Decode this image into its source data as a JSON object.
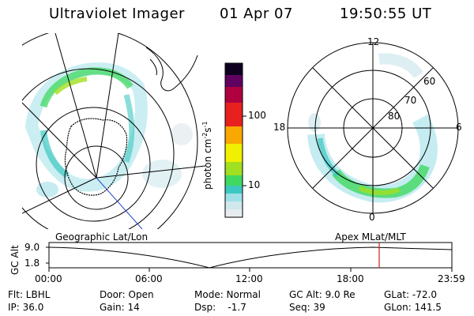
{
  "header": {
    "instrument": "Ultraviolet Imager",
    "date": "01 Apr 07",
    "time": "19:50:55 UT"
  },
  "colorbar": {
    "unit_label": "photon cm",
    "unit_exp1": "-2",
    "unit_mid": "s",
    "unit_exp2": "-1",
    "ticks": [
      "100",
      "10"
    ]
  },
  "polar_plot": {
    "mlt_labels": {
      "top": "12",
      "left": "18",
      "right": "6",
      "bottom": "0"
    },
    "lat_labels": [
      "60",
      "70",
      "80"
    ]
  },
  "map_titles": {
    "left": "Geographic Lat/Lon",
    "right": "Apex MLat/MLT"
  },
  "altitude_plot": {
    "axis_label": "GC Alt",
    "y_ticks": [
      "9.0",
      "1.8"
    ],
    "x_ticks": [
      "00:00",
      "06:00",
      "12:00",
      "18:00",
      "23:59"
    ]
  },
  "info": {
    "col1": [
      "Flt: LBHL",
      "IP: 36.0"
    ],
    "col2": [
      "Door: Open",
      "Gain: 14"
    ],
    "col3": [
      "Mode: Normal",
      "Dsp:    -1.7"
    ],
    "col4": [
      "GC Alt: 9.0 Re",
      "Seq: 39"
    ],
    "col5": [
      "GLat: -72.0",
      "GLon: 141.5"
    ]
  },
  "colors": {
    "scale": [
      "#e6ecf0",
      "#cfe8ec",
      "#9fe0e8",
      "#3cc8c0",
      "#40d860",
      "#a0e020",
      "#f0f000",
      "#f8a800",
      "#e82020",
      "#b00040",
      "#600060",
      "#100020"
    ]
  }
}
